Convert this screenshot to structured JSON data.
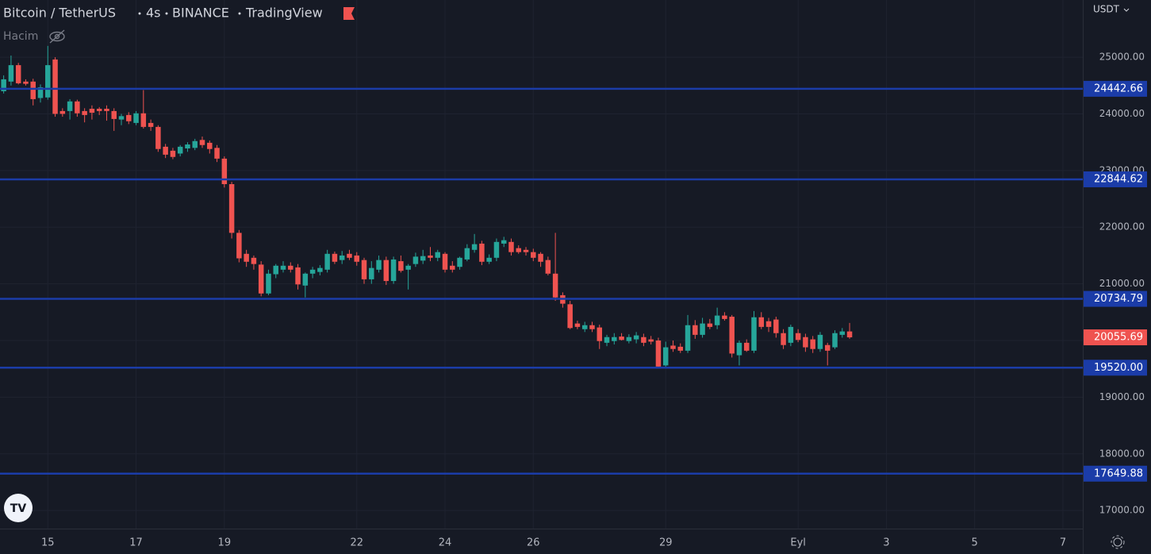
{
  "chart_data": {
    "type": "candlestick",
    "symbol": "Bitcoin / TetherUS",
    "interval": "4s",
    "exchange": "BINANCE",
    "source": "TradingView",
    "volume_label": "Hacim",
    "currency": "USDT",
    "up_color": "#26a69a",
    "down_color": "#ef5350",
    "line_color": "#1b3ca8",
    "grid": true,
    "open": [
      24400,
      24570,
      24860,
      24570,
      24570,
      24280,
      24290,
      24960,
      24050,
      24050,
      24220,
      24050,
      24090,
      24090,
      24090,
      24050,
      23900,
      23980,
      23840,
      24010,
      23840,
      23770,
      23420,
      23350,
      23300,
      23390,
      23400,
      23540,
      23490,
      23400,
      23210,
      22760,
      21900,
      21530,
      21460,
      21340,
      20830,
      21170,
      21250,
      21320,
      21290,
      20970,
      21180,
      21210,
      21250,
      21530,
      21420,
      21530,
      21500,
      21420,
      21080,
      21250,
      21420,
      21050,
      21400,
      21250,
      21350,
      21410,
      21500,
      21460,
      21530,
      21320,
      21300,
      21430,
      21600,
      21710,
      21390,
      21460,
      21710,
      21740,
      21630,
      21600,
      21560,
      21530,
      21420,
      21180,
      20800,
      20640,
      20300,
      20200,
      20270,
      20230,
      19960,
      19990,
      20070,
      19990,
      20020,
      20060,
      20020,
      20000,
      19560,
      19910,
      19890,
      19820,
      20270,
      20100,
      20300,
      20270,
      20440,
      20420,
      19740,
      19960,
      19820,
      20410,
      20340,
      20370,
      20130,
      19960,
      20130,
      20060,
      20020,
      19850,
      19920,
      19880,
      20100,
      20160
    ],
    "high": [
      24680,
      25030,
      24900,
      24610,
      24620,
      24520,
      25200,
      25000,
      24100,
      24260,
      24250,
      24100,
      24150,
      24120,
      24150,
      24100,
      24000,
      24030,
      24050,
      24420,
      23900,
      23800,
      23470,
      23400,
      23450,
      23500,
      23560,
      23600,
      23530,
      23450,
      23250,
      22800,
      21950,
      21600,
      21500,
      21400,
      21250,
      21350,
      21400,
      21380,
      21350,
      21200,
      21300,
      21330,
      21600,
      21570,
      21580,
      21600,
      21560,
      21460,
      21400,
      21500,
      21480,
      21480,
      21500,
      21350,
      21550,
      21600,
      21650,
      21600,
      21560,
      21400,
      21480,
      21700,
      21880,
      21760,
      21520,
      21800,
      21830,
      21800,
      21680,
      21650,
      21620,
      21560,
      21480,
      21900,
      20850,
      20700,
      20350,
      20330,
      20330,
      20280,
      20100,
      20130,
      20130,
      20110,
      20150,
      20120,
      20080,
      20050,
      19980,
      20000,
      19950,
      20450,
      20360,
      20400,
      20380,
      20580,
      20500,
      20450,
      20000,
      20020,
      20520,
      20500,
      20400,
      20420,
      20200,
      20280,
      20200,
      20120,
      20080,
      20150,
      19960,
      20180,
      20220,
      20310
    ],
    "low": [
      24360,
      24500,
      24520,
      24500,
      24150,
      24200,
      24250,
      23950,
      23950,
      23900,
      23950,
      23850,
      23900,
      23980,
      23880,
      23700,
      23800,
      23820,
      23800,
      23740,
      23700,
      23330,
      23220,
      23200,
      23250,
      23330,
      23360,
      23400,
      23300,
      23150,
      22700,
      21800,
      21380,
      21300,
      21250,
      20780,
      20800,
      21100,
      21200,
      21200,
      20900,
      20760,
      21100,
      21150,
      21200,
      21350,
      21350,
      21420,
      21320,
      21000,
      21000,
      21200,
      20980,
      21000,
      21200,
      20900,
      21300,
      21350,
      21400,
      21400,
      21200,
      21200,
      21250,
      21400,
      21550,
      21330,
      21350,
      21400,
      21650,
      21500,
      21530,
      21500,
      21400,
      21300,
      21150,
      20700,
      20580,
      20200,
      20200,
      20150,
      20150,
      19850,
      19900,
      19930,
      20000,
      19950,
      19950,
      19900,
      19930,
      19520,
      19520,
      19800,
      19780,
      19780,
      20030,
      20050,
      20200,
      20200,
      20350,
      19700,
      19560,
      19800,
      19780,
      20200,
      20150,
      20050,
      19850,
      19900,
      19970,
      19800,
      19780,
      19800,
      19560,
      19850,
      20050,
      20030
    ],
    "close": [
      24610,
      24860,
      24540,
      24530,
      24260,
      24470,
      24860,
      24000,
      24000,
      24220,
      24010,
      23980,
      24020,
      24050,
      24050,
      23910,
      23960,
      23870,
      24010,
      23770,
      23770,
      23380,
      23280,
      23240,
      23420,
      23460,
      23520,
      23450,
      23380,
      23210,
      22760,
      21900,
      21450,
      21390,
      21350,
      20830,
      21180,
      21320,
      21320,
      21250,
      20990,
      21180,
      21250,
      21280,
      21530,
      21390,
      21500,
      21460,
      21390,
      21080,
      21280,
      21420,
      21050,
      21430,
      21230,
      21320,
      21480,
      21490,
      21460,
      21560,
      21250,
      21250,
      21460,
      21630,
      21700,
      21390,
      21460,
      21740,
      21770,
      21560,
      21560,
      21560,
      21460,
      21390,
      21180,
      20760,
      20650,
      20220,
      20240,
      20270,
      20200,
      19990,
      20060,
      20060,
      20010,
      20060,
      20090,
      19960,
      19980,
      19540,
      19880,
      19850,
      19820,
      20270,
      20100,
      20300,
      20240,
      20440,
      20380,
      19770,
      19960,
      19820,
      20410,
      20240,
      20240,
      20130,
      19920,
      20240,
      20010,
      19880,
      19850,
      20100,
      19820,
      20130,
      20160,
      20055.69
    ],
    "last_label": "20055.69",
    "hlines": [
      {
        "value": 24442.66,
        "label": "24442.66"
      },
      {
        "value": 22844.62,
        "label": "22844.62"
      },
      {
        "value": 20734.79,
        "label": "20734.79"
      },
      {
        "value": 19520,
        "label": "19520.00"
      },
      {
        "value": 17649.88,
        "label": "17649.88"
      }
    ],
    "ylim": [
      16680,
      26010
    ],
    "yticks": [
      {
        "value": 17000,
        "label": "17000.00"
      },
      {
        "value": 18000,
        "label": "18000.00"
      },
      {
        "value": 19000,
        "label": "19000.00"
      },
      {
        "value": 20000,
        "label": "20000.00"
      },
      {
        "value": 21000,
        "label": "21000.00"
      },
      {
        "value": 22000,
        "label": "22000.00"
      },
      {
        "value": 23000,
        "label": "23000.00"
      },
      {
        "value": 24000,
        "label": "24000.00"
      },
      {
        "value": 25000,
        "label": "25000.00"
      }
    ],
    "xlim": [
      -0.5,
      146.7
    ],
    "xticks": [
      {
        "value": 6,
        "label": "15"
      },
      {
        "value": 18,
        "label": "17"
      },
      {
        "value": 30,
        "label": "19"
      },
      {
        "value": 48,
        "label": "22"
      },
      {
        "value": 60,
        "label": "24"
      },
      {
        "value": 72,
        "label": "26"
      },
      {
        "value": 90,
        "label": "29"
      },
      {
        "value": 108,
        "label": "Eyl"
      },
      {
        "value": 120,
        "label": "3"
      },
      {
        "value": 132,
        "label": "5"
      },
      {
        "value": 144,
        "label": "7"
      }
    ]
  }
}
